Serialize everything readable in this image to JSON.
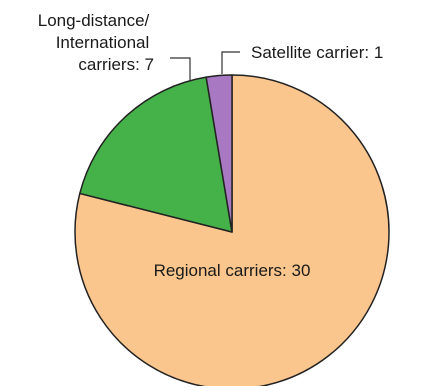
{
  "chart_data": {
    "type": "pie",
    "slices": [
      {
        "label": "Regional carriers: 30",
        "value": 30,
        "color": "#fbc68d"
      },
      {
        "label": "Long-distance/ International carriers: 7",
        "label_lines": [
          "Long-distance/",
          "International",
          "carriers: 7"
        ],
        "value": 7,
        "color": "#45b149"
      },
      {
        "label": "Satellite carrier: 1",
        "value": 1,
        "color": "#a878c3"
      }
    ],
    "stroke_color": "#222222",
    "legend": "none",
    "start": "top",
    "direction": "clockwise"
  }
}
